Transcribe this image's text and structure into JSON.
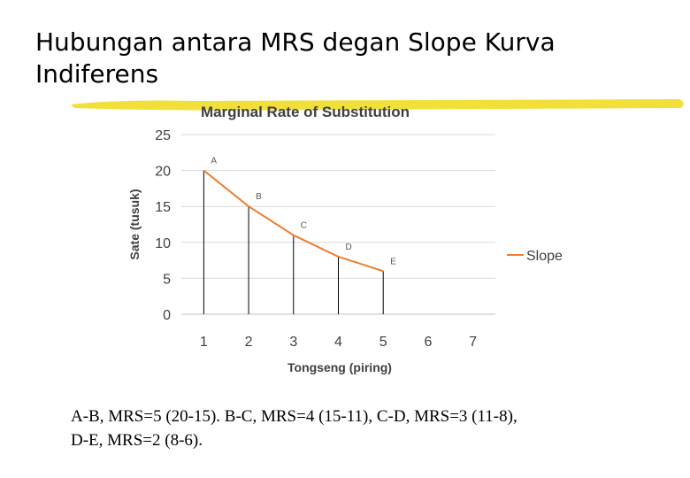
{
  "slide": {
    "title_line1": "Hubungan antara MRS degan Slope Kurva",
    "title_line2": "Indiferens",
    "caption_line1": "A-B, MRS=5 (20-15). B-C, MRS=4 (15-11), C-D, MRS=3 (11-8),",
    "caption_line2": "D-E, MRS=2 (8-6).",
    "highlight_color": "#f2e03a"
  },
  "chart_data": {
    "type": "line",
    "title": "Marginal Rate of Substitution",
    "xlabel": "Tongseng (piring)",
    "ylabel": "Sate (tusuk)",
    "x_ticks": [
      1,
      2,
      3,
      4,
      5,
      6,
      7
    ],
    "y_ticks": [
      0,
      5,
      10,
      15,
      20,
      25
    ],
    "xlim": [
      0.5,
      7.5
    ],
    "ylim": [
      0,
      25
    ],
    "grid": "horizontal",
    "legend_position": "right",
    "series": [
      {
        "name": "Slope",
        "color": "#ed7d31",
        "x": [
          1,
          2,
          3,
          4,
          5
        ],
        "y": [
          20,
          15,
          11,
          8,
          6
        ],
        "point_labels": [
          "A",
          "B",
          "C",
          "D",
          "E"
        ]
      }
    ]
  }
}
